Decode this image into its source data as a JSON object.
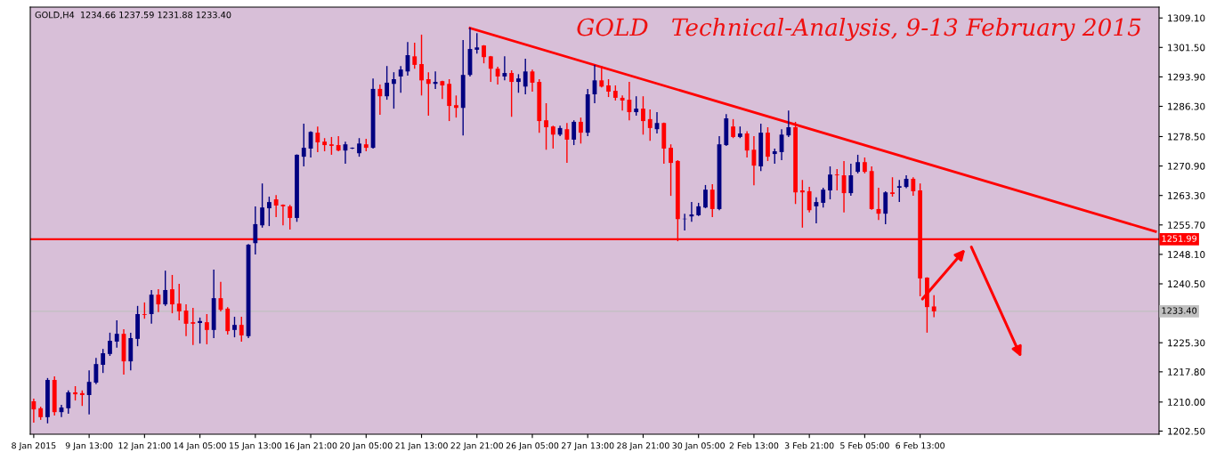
{
  "chart_data": {
    "type": "candlestick",
    "title": "GOLD   Technical-Analysis, 9-13 February 2015",
    "annotations": [
      "GOLD,H4  1234.66 1237.59 1231.88 1233.40"
    ],
    "categories": [
      "8 Jan 2015",
      null,
      null,
      null,
      null,
      null,
      null,
      null,
      "9 Jan 13:00",
      null,
      null,
      null,
      null,
      null,
      null,
      null,
      "12 Jan 21:00",
      null,
      null,
      null,
      null,
      null,
      null,
      null,
      "14 Jan 05:00",
      null,
      null,
      null,
      null,
      null,
      null,
      null,
      "15 Jan 13:00",
      null,
      null,
      null,
      null,
      null,
      null,
      null,
      "16 Jan 21:00",
      null,
      null,
      null,
      null,
      null,
      null,
      null,
      "20 Jan 05:00",
      null,
      null,
      null,
      null,
      null,
      null,
      null,
      "21 Jan 13:00",
      null,
      null,
      null,
      null,
      null,
      null,
      null,
      "22 Jan 21:00",
      null,
      null,
      null,
      null,
      null,
      null,
      null,
      "26 Jan 05:00",
      null,
      null,
      null,
      null,
      null,
      null,
      null,
      "27 Jan 13:00",
      null,
      null,
      null,
      null,
      null,
      null,
      null,
      "28 Jan 21:00",
      null,
      null,
      null,
      null,
      null,
      null,
      null,
      "30 Jan 05:00",
      null,
      null,
      null,
      null,
      null,
      null,
      null,
      "2 Feb 13:00",
      null,
      null,
      null,
      null,
      null,
      null,
      null,
      "3 Feb 21:00",
      null,
      null,
      null,
      null,
      null,
      null,
      null,
      "5 Feb 05:00",
      null,
      null,
      null,
      null,
      null,
      null,
      null,
      "6 Feb 13:00",
      null,
      null,
      null,
      null,
      null,
      null,
      null,
      null,
      null,
      null,
      null,
      null,
      null,
      null,
      null,
      null,
      null,
      null,
      null,
      null,
      null,
      null,
      null,
      null,
      null,
      null,
      null,
      null,
      null,
      null,
      null,
      null,
      null,
      null
    ],
    "ohlc": [
      [
        1210.2,
        1210.9,
        1204.7,
        1208.1
      ],
      [
        1208.4,
        1208.8,
        1205.4,
        1206.1
      ],
      [
        1206.1,
        1216.2,
        1204.5,
        1215.7
      ],
      [
        1215.7,
        1216.6,
        1206.5,
        1207.4
      ],
      [
        1207.4,
        1209.3,
        1206.1,
        1208.6
      ],
      [
        1208.4,
        1213.0,
        1207.0,
        1212.5
      ],
      [
        1212.5,
        1214.1,
        1210.4,
        1212.0
      ],
      [
        1212.3,
        1213.0,
        1209.0,
        1211.8
      ],
      [
        1211.8,
        1218.2,
        1206.8,
        1215.2
      ],
      [
        1215.0,
        1221.4,
        1214.6,
        1219.8
      ],
      [
        1219.6,
        1223.7,
        1217.5,
        1222.6
      ],
      [
        1222.4,
        1227.9,
        1221.9,
        1225.8
      ],
      [
        1225.6,
        1231.1,
        1224.0,
        1227.6
      ],
      [
        1227.6,
        1228.8,
        1217.1,
        1220.5
      ],
      [
        1220.5,
        1227.9,
        1218.2,
        1226.5
      ],
      [
        1226.3,
        1234.8,
        1224.4,
        1232.7
      ],
      [
        1232.7,
        1235.7,
        1231.5,
        1232.5
      ],
      [
        1232.7,
        1238.9,
        1230.2,
        1237.7
      ],
      [
        1237.7,
        1239.1,
        1233.2,
        1235.2
      ],
      [
        1235.2,
        1243.9,
        1234.8,
        1238.9
      ],
      [
        1239.1,
        1242.8,
        1232.9,
        1235.2
      ],
      [
        1235.4,
        1240.5,
        1231.1,
        1233.4
      ],
      [
        1233.6,
        1235.2,
        1227.0,
        1230.2
      ],
      [
        1230.6,
        1234.3,
        1224.7,
        1230.2
      ],
      [
        1230.4,
        1231.8,
        1225.1,
        1230.9
      ],
      [
        1230.6,
        1232.7,
        1224.9,
        1228.6
      ],
      [
        1228.6,
        1244.2,
        1226.5,
        1236.8
      ],
      [
        1236.8,
        1241.0,
        1233.4,
        1233.8
      ],
      [
        1234.1,
        1234.5,
        1227.4,
        1228.3
      ],
      [
        1228.6,
        1232.0,
        1226.7,
        1229.9
      ],
      [
        1229.9,
        1232.0,
        1225.6,
        1227.2
      ],
      [
        1227.0,
        1250.8,
        1226.5,
        1250.6
      ],
      [
        1251.0,
        1260.5,
        1248.1,
        1255.9
      ],
      [
        1255.6,
        1266.4,
        1255.0,
        1260.2
      ],
      [
        1260.0,
        1263.0,
        1255.4,
        1261.6
      ],
      [
        1262.3,
        1263.4,
        1257.7,
        1260.7
      ],
      [
        1260.9,
        1261.0,
        1255.6,
        1260.5
      ],
      [
        1260.5,
        1260.9,
        1254.5,
        1257.5
      ],
      [
        1257.5,
        1273.9,
        1256.5,
        1273.8
      ],
      [
        1273.3,
        1281.8,
        1270.8,
        1275.6
      ],
      [
        1275.4,
        1279.9,
        1273.1,
        1279.7
      ],
      [
        1279.5,
        1281.1,
        1274.5,
        1277.0
      ],
      [
        1277.2,
        1278.1,
        1274.7,
        1276.3
      ],
      [
        1276.5,
        1278.4,
        1273.8,
        1276.1
      ],
      [
        1276.3,
        1278.6,
        1274.7,
        1274.9
      ],
      [
        1274.9,
        1277.2,
        1271.5,
        1276.5
      ],
      [
        1275.4,
        1275.7,
        1275.3,
        1275.6
      ],
      [
        1274.2,
        1278.1,
        1273.3,
        1276.7
      ],
      [
        1276.5,
        1277.9,
        1274.7,
        1275.6
      ],
      [
        1275.6,
        1293.5,
        1275.4,
        1290.8
      ],
      [
        1290.8,
        1291.9,
        1284.1,
        1288.9
      ],
      [
        1288.9,
        1296.7,
        1288.0,
        1292.4
      ],
      [
        1292.1,
        1295.1,
        1285.7,
        1293.3
      ],
      [
        1294.0,
        1296.7,
        1289.8,
        1295.8
      ],
      [
        1295.3,
        1302.9,
        1294.2,
        1299.5
      ],
      [
        1299.2,
        1302.7,
        1296.0,
        1297.0
      ],
      [
        1297.2,
        1304.8,
        1289.1,
        1293.0
      ],
      [
        1293.3,
        1295.1,
        1283.9,
        1292.1
      ],
      [
        1292.1,
        1295.3,
        1290.8,
        1292.6
      ],
      [
        1292.8,
        1292.9,
        1288.2,
        1291.7
      ],
      [
        1292.1,
        1293.3,
        1282.5,
        1286.4
      ],
      [
        1286.6,
        1289.1,
        1283.4,
        1285.9
      ],
      [
        1285.9,
        1303.4,
        1278.8,
        1294.4
      ],
      [
        1294.4,
        1306.6,
        1294.0,
        1301.1
      ],
      [
        1300.9,
        1305.2,
        1299.9,
        1301.5
      ],
      [
        1302.0,
        1302.1,
        1297.4,
        1299.0
      ],
      [
        1299.2,
        1299.3,
        1292.6,
        1296.0
      ],
      [
        1296.0,
        1296.5,
        1291.9,
        1294.0
      ],
      [
        1294.0,
        1299.2,
        1293.0,
        1294.9
      ],
      [
        1294.9,
        1295.6,
        1283.6,
        1292.6
      ],
      [
        1292.6,
        1294.6,
        1289.8,
        1293.5
      ],
      [
        1291.4,
        1298.6,
        1289.4,
        1295.3
      ],
      [
        1295.3,
        1295.8,
        1290.1,
        1292.4
      ],
      [
        1292.6,
        1293.3,
        1279.5,
        1282.5
      ],
      [
        1282.7,
        1287.1,
        1275.1,
        1280.9
      ],
      [
        1281.1,
        1281.3,
        1275.4,
        1279.0
      ],
      [
        1279.0,
        1281.3,
        1278.6,
        1280.7
      ],
      [
        1280.4,
        1282.0,
        1271.7,
        1277.7
      ],
      [
        1277.7,
        1282.7,
        1276.3,
        1282.3
      ],
      [
        1282.3,
        1283.4,
        1276.7,
        1279.5
      ],
      [
        1279.5,
        1290.8,
        1278.6,
        1289.4
      ],
      [
        1289.4,
        1297.0,
        1287.1,
        1293.0
      ],
      [
        1293.0,
        1296.7,
        1291.2,
        1291.4
      ],
      [
        1291.7,
        1293.3,
        1288.7,
        1290.1
      ],
      [
        1290.3,
        1291.7,
        1287.8,
        1288.5
      ],
      [
        1288.5,
        1289.1,
        1285.2,
        1287.8
      ],
      [
        1288.0,
        1292.6,
        1282.7,
        1284.8
      ],
      [
        1284.8,
        1288.9,
        1283.9,
        1285.7
      ],
      [
        1285.7,
        1288.9,
        1279.0,
        1282.5
      ],
      [
        1283.0,
        1285.5,
        1277.4,
        1280.7
      ],
      [
        1280.4,
        1284.8,
        1279.3,
        1282.0
      ],
      [
        1282.0,
        1282.1,
        1271.5,
        1275.4
      ],
      [
        1275.6,
        1276.5,
        1263.2,
        1271.7
      ],
      [
        1272.2,
        1272.4,
        1251.5,
        1257.2
      ],
      [
        1257.2,
        1258.6,
        1254.3,
        1257.3
      ],
      [
        1257.9,
        1261.6,
        1256.5,
        1258.4
      ],
      [
        1258.2,
        1261.4,
        1258.0,
        1260.5
      ],
      [
        1260.2,
        1266.0,
        1260.0,
        1264.8
      ],
      [
        1264.8,
        1266.2,
        1257.7,
        1259.8
      ],
      [
        1259.8,
        1278.6,
        1259.5,
        1276.5
      ],
      [
        1276.3,
        1284.3,
        1276.1,
        1283.2
      ],
      [
        1281.1,
        1283.0,
        1278.1,
        1278.4
      ],
      [
        1278.4,
        1281.1,
        1278.1,
        1279.3
      ],
      [
        1279.3,
        1279.9,
        1273.1,
        1274.9
      ],
      [
        1275.1,
        1278.6,
        1265.9,
        1271.0
      ],
      [
        1270.8,
        1281.8,
        1269.6,
        1279.5
      ],
      [
        1279.5,
        1280.9,
        1272.2,
        1273.3
      ],
      [
        1274.0,
        1275.4,
        1271.5,
        1274.7
      ],
      [
        1274.5,
        1280.4,
        1272.4,
        1279.0
      ],
      [
        1278.8,
        1285.2,
        1278.4,
        1280.9
      ],
      [
        1280.9,
        1282.3,
        1261.1,
        1264.1
      ],
      [
        1264.6,
        1267.3,
        1255.0,
        1264.1
      ],
      [
        1264.4,
        1265.5,
        1258.9,
        1259.5
      ],
      [
        1260.5,
        1262.8,
        1256.1,
        1261.6
      ],
      [
        1261.4,
        1265.3,
        1260.2,
        1264.8
      ],
      [
        1264.6,
        1270.8,
        1262.3,
        1268.7
      ],
      [
        1268.7,
        1270.1,
        1264.6,
        1268.5
      ],
      [
        1268.5,
        1272.2,
        1258.9,
        1263.9
      ],
      [
        1263.9,
        1271.5,
        1263.2,
        1268.5
      ],
      [
        1269.4,
        1273.8,
        1269.0,
        1271.9
      ],
      [
        1271.9,
        1273.1,
        1269.0,
        1269.4
      ],
      [
        1269.6,
        1270.8,
        1259.6,
        1259.8
      ],
      [
        1259.8,
        1265.3,
        1257.0,
        1258.6
      ],
      [
        1258.6,
        1264.4,
        1255.9,
        1264.1
      ],
      [
        1264.1,
        1268.0,
        1263.0,
        1263.7
      ],
      [
        1265.3,
        1267.3,
        1261.6,
        1265.7
      ],
      [
        1265.5,
        1268.5,
        1265.2,
        1267.6
      ],
      [
        1267.6,
        1268.0,
        1263.2,
        1264.4
      ],
      [
        1264.6,
        1266.4,
        1237.3,
        1241.9
      ],
      [
        1242.1,
        1242.2,
        1227.9,
        1234.5
      ],
      [
        1234.66,
        1237.59,
        1231.88,
        1233.4
      ],
      null,
      null,
      null,
      null,
      null,
      null,
      null,
      null,
      null,
      null,
      null,
      null,
      null,
      null,
      null,
      null,
      null,
      null,
      null,
      null,
      null,
      null,
      null,
      null,
      null,
      null,
      null,
      null,
      null,
      null,
      null,
      null
    ],
    "colors": [
      "#ff0000",
      "#ff0000",
      "#000080",
      "#ff0000",
      "#000080",
      "#000080",
      "#ff0000",
      "#ff0000",
      "#000080",
      "#000080",
      "#000080",
      "#000080",
      "#000080",
      "#ff0000",
      "#000080",
      "#000080",
      "#ff0000",
      "#000080",
      "#ff0000",
      "#000080",
      "#ff0000",
      "#ff0000",
      "#ff0000",
      "#ff0000",
      "#000080",
      "#ff0000",
      "#000080",
      "#ff0000",
      "#ff0000",
      "#000080",
      "#ff0000",
      "#000080",
      "#000080",
      "#000080",
      "#000080",
      "#ff0000",
      "#ff0000",
      "#ff0000",
      "#000080",
      "#000080",
      "#000080",
      "#ff0000",
      "#ff0000",
      "#ff0000",
      "#ff0000",
      "#000080",
      "#000080",
      "#000080",
      "#ff0000",
      "#000080",
      "#ff0000",
      "#000080",
      "#000080",
      "#000080",
      "#000080",
      "#ff0000",
      "#ff0000",
      "#ff0000",
      "#000080",
      "#ff0000",
      "#ff0000",
      "#ff0000",
      "#000080",
      "#000080",
      "#000080",
      "#ff0000",
      "#ff0000",
      "#ff0000",
      "#000080",
      "#ff0000",
      "#000080",
      "#000080",
      "#ff0000",
      "#ff0000",
      "#ff0000",
      "#ff0000",
      "#000080",
      "#ff0000",
      "#000080",
      "#ff0000",
      "#000080",
      "#000080",
      "#ff0000",
      "#ff0000",
      "#ff0000",
      "#ff0000",
      "#ff0000",
      "#000080",
      "#ff0000",
      "#ff0000",
      "#000080",
      "#ff0000",
      "#ff0000",
      "#ff0000",
      "#000080",
      "#000080",
      "#000080",
      "#000080",
      "#ff0000",
      "#000080",
      "#000080",
      "#ff0000",
      "#000080",
      "#ff0000",
      "#ff0000",
      "#000080",
      "#ff0000",
      "#000080",
      "#000080",
      "#000080",
      "#ff0000",
      "#ff0000",
      "#ff0000",
      "#000080",
      "#000080",
      "#000080",
      "#ff0000",
      "#ff0000",
      "#000080",
      "#000080",
      "#ff0000",
      "#ff0000",
      "#ff0000",
      "#000080",
      "#ff0000",
      "#000080",
      "#000080",
      "#ff0000",
      "#ff0000",
      "#ff0000",
      "#ff0000",
      null,
      null,
      null,
      null,
      null,
      null,
      null,
      null,
      null,
      null,
      null,
      null,
      null,
      null,
      null,
      null,
      null,
      null,
      null,
      null,
      null,
      null,
      null,
      null,
      null,
      null,
      null,
      null,
      null,
      null,
      null,
      null
    ],
    "series": [
      {
        "type": "line",
        "color": "#ff0000",
        "values": [
          null,
          null,
          null,
          null,
          null,
          null,
          null,
          null,
          null,
          null,
          null,
          null,
          null,
          null,
          null,
          null,
          null,
          null,
          null,
          null,
          null,
          null,
          null,
          null,
          null,
          null,
          null,
          null,
          null,
          null,
          null,
          null,
          null,
          null,
          null,
          null,
          null,
          null,
          null,
          null,
          null,
          null,
          null,
          null,
          null,
          null,
          null,
          null,
          null,
          null,
          null,
          null,
          null,
          null,
          null,
          null,
          null,
          null,
          null,
          null,
          null,
          null,
          null,
          1306.5,
          null,
          null,
          null,
          null,
          null,
          null,
          null,
          null,
          null,
          null,
          null,
          null,
          null,
          null,
          null,
          null,
          null,
          null,
          null,
          null,
          null,
          null,
          null,
          null,
          null,
          null,
          null,
          null,
          null,
          null,
          null,
          null,
          null,
          null,
          null,
          null,
          null,
          null,
          null,
          null,
          null,
          null,
          null,
          null,
          null,
          null,
          null,
          null,
          null,
          null,
          null,
          null,
          null,
          null,
          null,
          null,
          null,
          null,
          null,
          null,
          null,
          null,
          null,
          null,
          null,
          null,
          null,
          null,
          null,
          null,
          null,
          null,
          null,
          null,
          null,
          null,
          null,
          null,
          null,
          null,
          null,
          null,
          null,
          null,
          null,
          null,
          null,
          null,
          null,
          null,
          null,
          null,
          null,
          null,
          null,
          null,
          null,
          null,
          1254.0
        ]
      }
    ],
    "ref_lines": [
      {
        "axis": "y",
        "value": 1251.99,
        "label": "1251.99",
        "color": "#ff0000",
        "line_style": "solid"
      },
      {
        "axis": "y",
        "value": 1233.4,
        "label": "1233.40",
        "color": "#c0c0c0",
        "line_style": "solid"
      }
    ],
    "ylim": [
      1201.7,
      1311.9
    ],
    "yticks": [
      {
        "value": 1202.5,
        "label": "1202.50"
      },
      {
        "value": 1210.0,
        "label": "1210.00"
      },
      {
        "value": 1217.8,
        "label": "1217.80"
      },
      {
        "value": 1225.3,
        "label": "1225.30"
      },
      {
        "value": 1240.5,
        "label": "1240.50"
      },
      {
        "value": 1248.1,
        "label": "1248.10"
      },
      {
        "value": 1255.7,
        "label": "1255.70"
      },
      {
        "value": 1263.3,
        "label": "1263.30"
      },
      {
        "value": 1270.9,
        "label": "1270.90"
      },
      {
        "value": 1278.5,
        "label": "1278.50"
      },
      {
        "value": 1286.3,
        "label": "1286.30"
      },
      {
        "value": 1293.9,
        "label": "1293.90"
      },
      {
        "value": 1301.5,
        "label": "1301.50"
      },
      {
        "value": 1309.1,
        "label": "1309.10"
      }
    ],
    "grid": false,
    "legend": false
  }
}
